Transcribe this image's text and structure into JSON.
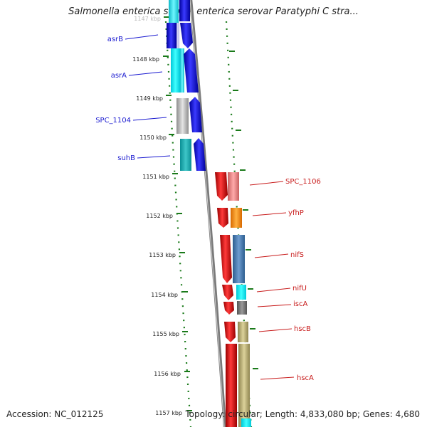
{
  "title": "Salmonella enterica subsp. enterica serovar Paratyphi C stra...",
  "accession": "Accession: NC_012125",
  "topology": "Topology: circular; Length: 4,833,080 bp; Genes: 4,680",
  "kbp_labels": [
    "1147 kbp",
    "1148 kbp",
    "1149 kbp",
    "1150 kbp",
    "1151 kbp",
    "1152 kbp",
    "1153 kbp",
    "1154 kbp",
    "1155 kbp",
    "1156 kbp",
    "1157 kbp"
  ],
  "left_genes": [
    {
      "name": "asrB",
      "color": "#1515e8"
    },
    {
      "name": "asrA",
      "color": "#1515e8"
    },
    {
      "name": "SPC_1104",
      "color": "#1515e8"
    },
    {
      "name": "suhB",
      "color": "#1515e8"
    }
  ],
  "right_genes": [
    {
      "name": "SPC_1106",
      "color": "#c81c1c"
    },
    {
      "name": "yfhP",
      "color": "#c81c1c"
    },
    {
      "name": "nifS",
      "color": "#c81c1c"
    },
    {
      "name": "nifU",
      "color": "#c81c1c"
    },
    {
      "name": "iscA",
      "color": "#c81c1c"
    },
    {
      "name": "hscB",
      "color": "#c81c1c"
    },
    {
      "name": "hscA",
      "color": "#c81c1c"
    }
  ],
  "colors": {
    "backbone": "#888888",
    "tick": "#1a7a1a",
    "left_strand": "#0000ee",
    "right_strand": "#ee0000"
  }
}
